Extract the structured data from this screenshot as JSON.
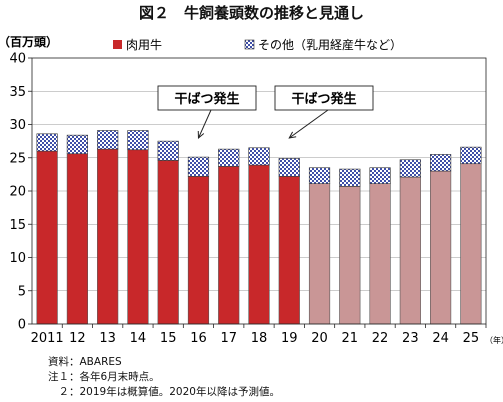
{
  "chart_data": {
    "type": "bar",
    "stacked": true,
    "title": "図２　牛飼養頭数の推移と見通し",
    "ylabel": "（百万頭）",
    "xlabel": "（年）",
    "ylim": [
      0,
      40
    ],
    "yticks": [
      0,
      5,
      10,
      15,
      20,
      25,
      30,
      35,
      40
    ],
    "grid": "horizontal",
    "legend_position": "top",
    "categories": [
      "2011",
      "12",
      "13",
      "14",
      "15",
      "16",
      "17",
      "18",
      "19",
      "20",
      "21",
      "22",
      "23",
      "24",
      "25"
    ],
    "series": [
      {
        "name": "肉用牛",
        "values": [
          26.0,
          25.6,
          26.3,
          26.2,
          24.6,
          22.2,
          23.7,
          23.9,
          22.2,
          21.1,
          20.7,
          21.1,
          22.1,
          23.0,
          24.1
        ],
        "color": "#c8282a",
        "forecast_color": "#c99696"
      },
      {
        "name": "その他（乳用経産牛など）",
        "values": [
          2.6,
          2.8,
          2.8,
          2.9,
          2.9,
          2.9,
          2.6,
          2.6,
          2.7,
          2.4,
          2.6,
          2.4,
          2.6,
          2.5,
          2.5
        ],
        "color": "#ffffff",
        "pattern": "checker-blue"
      }
    ],
    "forecast_from": "20",
    "annotations": [
      {
        "text": "干ばつ発生",
        "points_to": "16"
      },
      {
        "text": "干ばつ発生",
        "points_to": "19"
      }
    ],
    "notes": [
      "資料：ABARES",
      "注１：各年6月末時点。",
      "　２：2019年は概算値。2020年以降は予測値。"
    ]
  }
}
